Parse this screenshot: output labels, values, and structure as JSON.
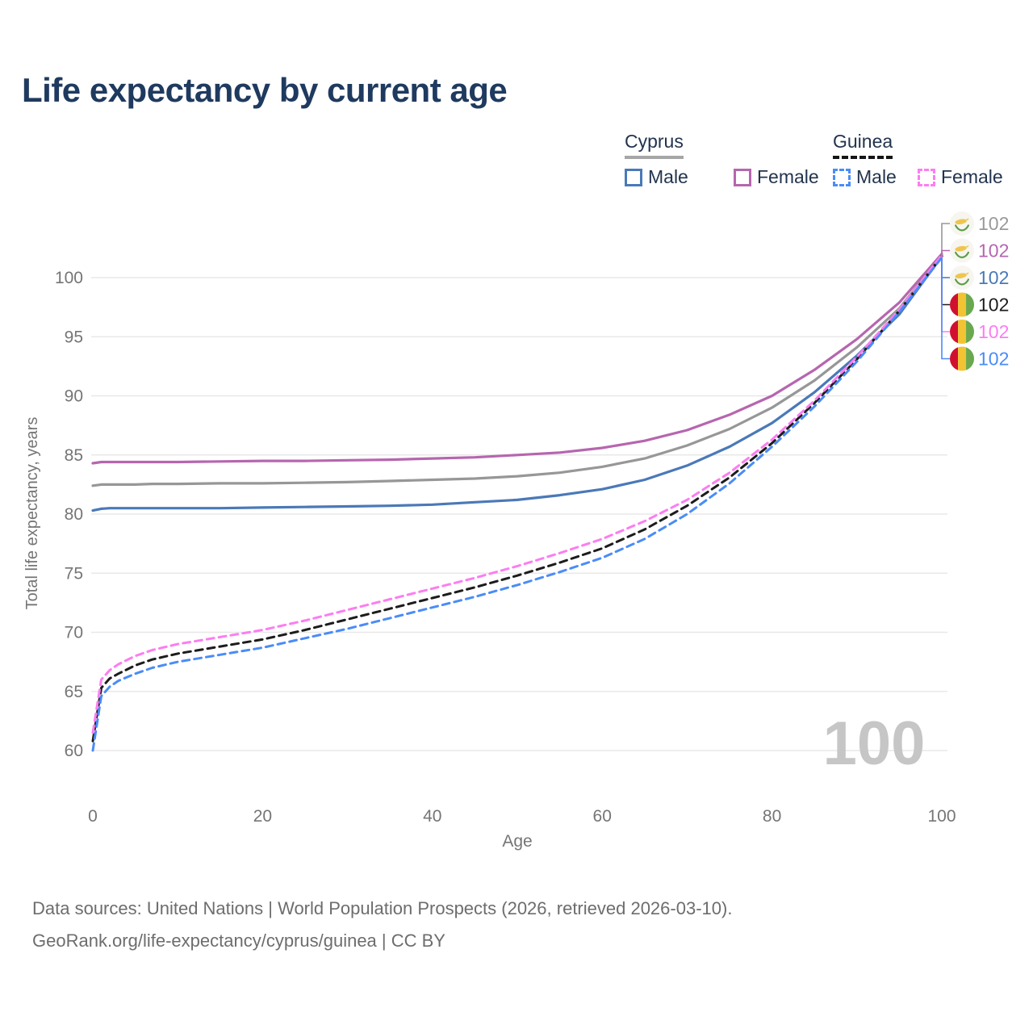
{
  "title": "Life expectancy by current age",
  "legend": {
    "groups": [
      {
        "label": "Cyprus",
        "line_style": "solid",
        "line_color": "#a6a6a6",
        "items": [
          {
            "label": "Male",
            "color": "#4a79b8"
          },
          {
            "label": "Female",
            "color": "#b666af"
          }
        ]
      },
      {
        "label": "Guinea",
        "line_style": "dashed",
        "line_color": "#151515",
        "items": [
          {
            "label": "Male",
            "color": "#4a8cf7"
          },
          {
            "label": "Female",
            "color": "#fc7df2"
          }
        ]
      }
    ]
  },
  "watermark_age": "100",
  "footer": {
    "line1": "Data sources: United Nations | World Population Prospects (2026, retrieved 2026-03-10).",
    "line2": "GeoRank.org/life-expectancy/cyprus/guinea | CC BY"
  },
  "colors": {
    "title": "#1f3a5f",
    "axis_text": "#757575",
    "grid": "#e8e8e8",
    "watermark": "#c6c6c6",
    "cyprus_male": "#4a79b8",
    "cyprus_female": "#b666af",
    "cyprus_total": "#979797",
    "guinea_male": "#4a8cf7",
    "guinea_female": "#fc7df2",
    "guinea_total": "#1c1c1c"
  },
  "chart_data": {
    "type": "line",
    "title": "Life expectancy by current age",
    "xlabel": "Age",
    "ylabel": "Total life expectancy, years",
    "xlim": [
      0,
      100
    ],
    "ylim": [
      60,
      104
    ],
    "x_ticks": [
      0,
      20,
      40,
      60,
      80,
      100
    ],
    "y_ticks": [
      60,
      65,
      70,
      75,
      80,
      85,
      90,
      95,
      100
    ],
    "grid": "horizontal",
    "legend_position": "top-right",
    "age_cursor": "100",
    "x": [
      0,
      1,
      2,
      3,
      5,
      7,
      10,
      15,
      20,
      25,
      30,
      35,
      40,
      45,
      50,
      55,
      60,
      65,
      70,
      75,
      80,
      85,
      90,
      95,
      100
    ],
    "series": [
      {
        "name": "Cyprus Total",
        "country": "Cyprus",
        "sex": "total",
        "color": "#979797",
        "label_color": "#9a9a9a",
        "dashed": false,
        "flag": "cyprus",
        "end_label": "102",
        "values": [
          82.4,
          82.5,
          82.5,
          82.5,
          82.5,
          82.55,
          82.55,
          82.6,
          82.6,
          82.65,
          82.7,
          82.8,
          82.9,
          83.0,
          83.2,
          83.5,
          84.0,
          84.7,
          85.8,
          87.2,
          89.0,
          91.3,
          94.1,
          97.4,
          101.9
        ]
      },
      {
        "name": "Cyprus Female",
        "country": "Cyprus",
        "sex": "female",
        "color": "#b666af",
        "label_color": "#b666af",
        "dashed": false,
        "flag": "cyprus",
        "end_label": "102",
        "values": [
          84.3,
          84.4,
          84.4,
          84.4,
          84.4,
          84.4,
          84.4,
          84.45,
          84.5,
          84.5,
          84.55,
          84.6,
          84.7,
          84.8,
          85.0,
          85.2,
          85.6,
          86.2,
          87.1,
          88.4,
          90.0,
          92.2,
          94.8,
          97.9,
          102.0
        ]
      },
      {
        "name": "Cyprus Male",
        "country": "Cyprus",
        "sex": "male",
        "color": "#4a79b8",
        "label_color": "#4a79b8",
        "dashed": false,
        "flag": "cyprus",
        "end_label": "102",
        "values": [
          80.3,
          80.45,
          80.5,
          80.5,
          80.5,
          80.5,
          80.5,
          80.5,
          80.55,
          80.6,
          80.65,
          80.7,
          80.8,
          81.0,
          81.2,
          81.6,
          82.1,
          82.9,
          84.1,
          85.7,
          87.7,
          90.3,
          93.4,
          96.9,
          101.8
        ]
      },
      {
        "name": "Guinea Total",
        "country": "Guinea",
        "sex": "total",
        "color": "#1c1c1c",
        "label_color": "#1c1c1c",
        "dashed": true,
        "flag": "guinea",
        "end_label": "102",
        "values": [
          60.8,
          65.3,
          66.1,
          66.5,
          67.2,
          67.7,
          68.2,
          68.8,
          69.4,
          70.2,
          71.1,
          72.0,
          72.9,
          73.8,
          74.8,
          75.9,
          77.1,
          78.7,
          80.7,
          83.1,
          86.0,
          89.4,
          93.1,
          97.2,
          101.8
        ]
      },
      {
        "name": "Guinea Female",
        "country": "Guinea",
        "sex": "female",
        "color": "#fc7df2",
        "label_color": "#fc7df2",
        "dashed": true,
        "flag": "guinea",
        "end_label": "102",
        "values": [
          61.5,
          66.0,
          66.8,
          67.3,
          68.0,
          68.5,
          69.0,
          69.6,
          70.2,
          71.0,
          71.9,
          72.8,
          73.7,
          74.6,
          75.6,
          76.7,
          77.9,
          79.4,
          81.2,
          83.5,
          86.3,
          89.6,
          93.3,
          97.3,
          101.9
        ]
      },
      {
        "name": "Guinea Male",
        "country": "Guinea",
        "sex": "male",
        "color": "#4a8cf7",
        "label_color": "#4a8cf7",
        "dashed": true,
        "flag": "guinea",
        "end_label": "102",
        "values": [
          60.0,
          64.6,
          65.4,
          65.9,
          66.5,
          67.0,
          67.5,
          68.1,
          68.7,
          69.5,
          70.3,
          71.2,
          72.1,
          73.0,
          74.0,
          75.1,
          76.3,
          77.9,
          80.0,
          82.6,
          85.7,
          89.1,
          92.9,
          97.1,
          101.7
        ]
      }
    ]
  }
}
